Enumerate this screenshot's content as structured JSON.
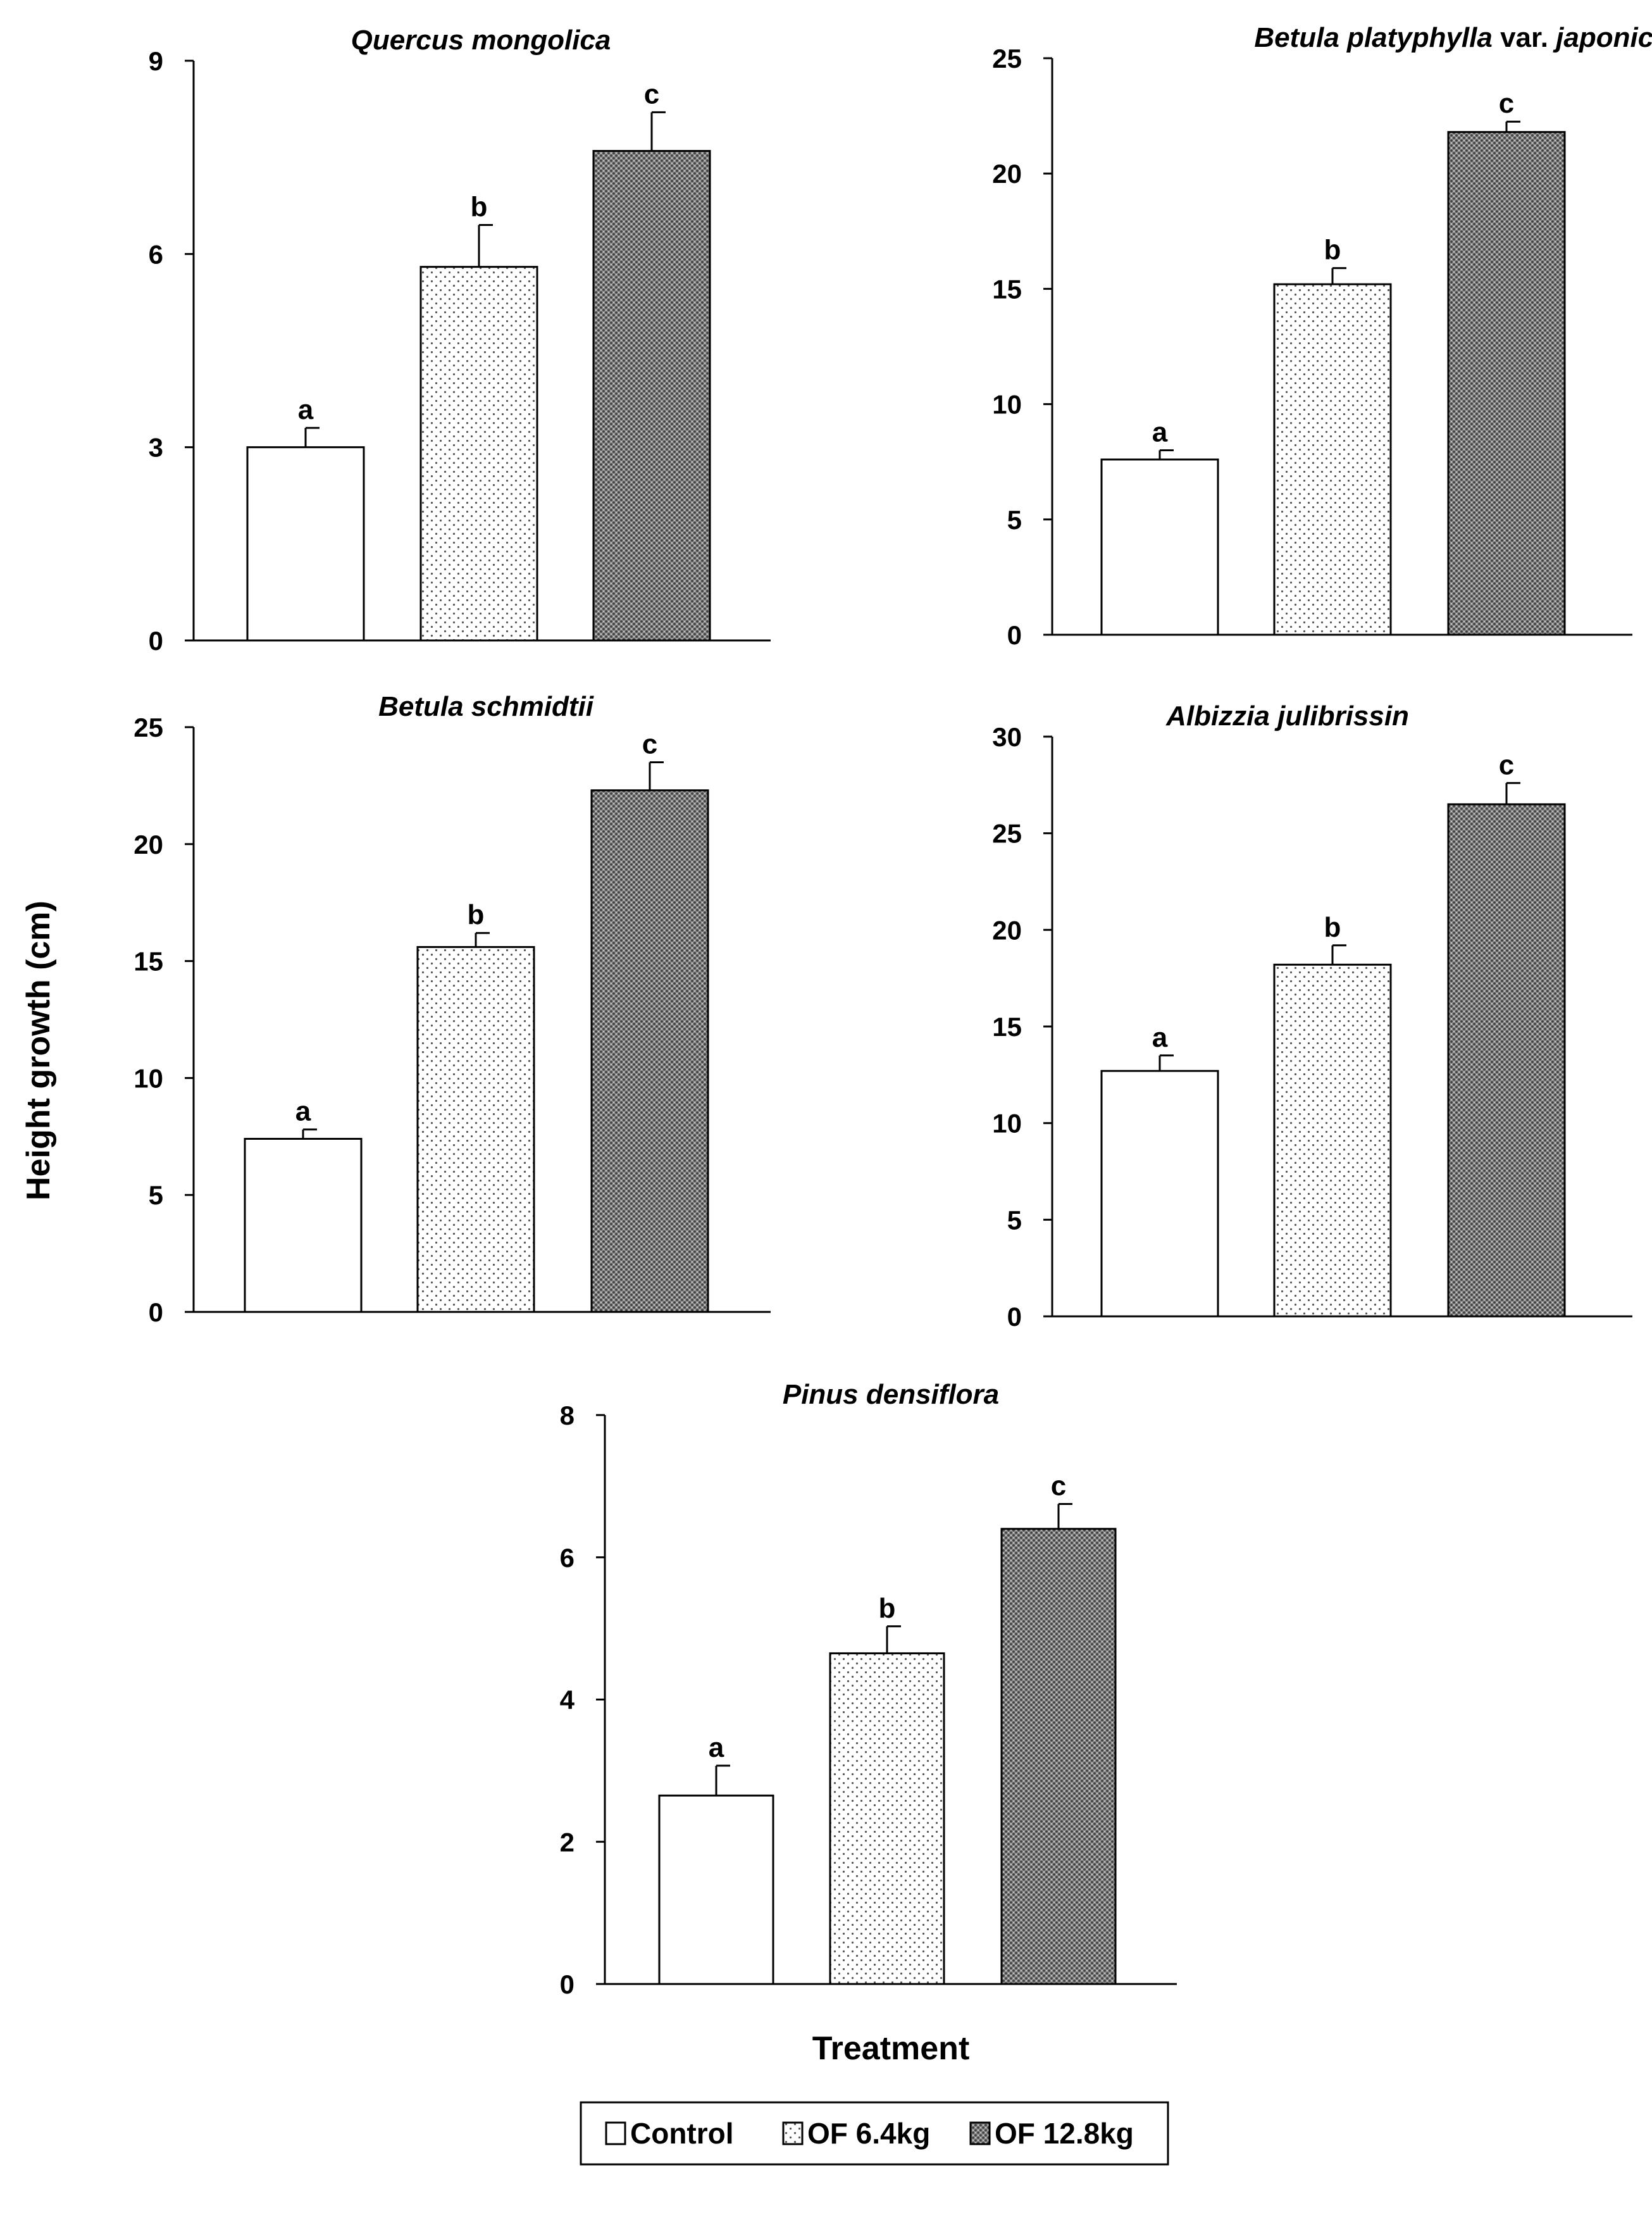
{
  "figure": {
    "ylabel": "Height growth (cm)",
    "xlabel": "Treatment"
  },
  "legend": {
    "items": [
      {
        "label": "Control",
        "pattern": "empty"
      },
      {
        "label": "OF 6.4kg",
        "pattern": "dots"
      },
      {
        "label": "OF 12.8kg",
        "pattern": "dense"
      }
    ]
  },
  "colors": {
    "bar_outline": "#000000",
    "control_fill": "#ffffff",
    "dense_fill": "#7a7a7a",
    "dot_color": "#555555"
  },
  "chart_data": [
    {
      "type": "bar",
      "title": "Quercus mongolica",
      "title_parts": [
        {
          "text": "Quercus mongolica",
          "italic": true
        }
      ],
      "categories": [
        "Control",
        "OF 6.4kg",
        "OF 12.8kg"
      ],
      "values": [
        3.0,
        5.8,
        7.6
      ],
      "errors": [
        0.3,
        0.65,
        0.6
      ],
      "letters": [
        "a",
        "b",
        "c"
      ],
      "ylim": [
        0,
        9
      ],
      "yticks": [
        0,
        3,
        6,
        9
      ],
      "xlabel": "",
      "ylabel": "Height growth (cm)"
    },
    {
      "type": "bar",
      "title": "Betula platyphylla var. japonica",
      "title_parts": [
        {
          "text": "Betula platyphylla",
          "italic": true
        },
        {
          "text": " var. ",
          "italic": false
        },
        {
          "text": "japonica",
          "italic": true
        }
      ],
      "categories": [
        "Control",
        "OF 6.4kg",
        "OF 12.8kg"
      ],
      "values": [
        7.6,
        15.2,
        21.8
      ],
      "errors": [
        0.4,
        0.7,
        0.45
      ],
      "letters": [
        "a",
        "b",
        "c"
      ],
      "ylim": [
        0,
        25
      ],
      "yticks": [
        0,
        5,
        10,
        15,
        20,
        25
      ],
      "xlabel": "",
      "ylabel": "Height growth (cm)"
    },
    {
      "type": "bar",
      "title": "Betula schmidtii",
      "title_parts": [
        {
          "text": "Betula schmidtii",
          "italic": true
        }
      ],
      "categories": [
        "Control",
        "OF 6.4kg",
        "OF 12.8kg"
      ],
      "values": [
        7.4,
        15.6,
        22.3
      ],
      "errors": [
        0.4,
        0.6,
        1.2
      ],
      "letters": [
        "a",
        "b",
        "c"
      ],
      "ylim": [
        0,
        25
      ],
      "yticks": [
        0,
        5,
        10,
        15,
        20,
        25
      ],
      "xlabel": "",
      "ylabel": "Height growth (cm)"
    },
    {
      "type": "bar",
      "title": "Albizzia julibrissin",
      "title_parts": [
        {
          "text": "Albizzia julibrissin",
          "italic": true
        }
      ],
      "categories": [
        "Control",
        "OF 6.4kg",
        "OF 12.8kg"
      ],
      "values": [
        12.7,
        18.2,
        26.5
      ],
      "errors": [
        0.8,
        1.0,
        1.1
      ],
      "letters": [
        "a",
        "b",
        "c"
      ],
      "ylim": [
        0,
        30
      ],
      "yticks": [
        0,
        5,
        10,
        15,
        20,
        25,
        30
      ],
      "xlabel": "",
      "ylabel": "Height growth (cm)"
    },
    {
      "type": "bar",
      "title": "Pinus densiflora",
      "title_parts": [
        {
          "text": "Pinus densiflora",
          "italic": true
        }
      ],
      "categories": [
        "Control",
        "OF 6.4kg",
        "OF 12.8kg"
      ],
      "values": [
        2.65,
        4.65,
        6.4
      ],
      "errors": [
        0.42,
        0.38,
        0.35
      ],
      "letters": [
        "a",
        "b",
        "c"
      ],
      "ylim": [
        0,
        8
      ],
      "yticks": [
        0,
        2,
        4,
        6,
        8
      ],
      "xlabel": "Treatment",
      "ylabel": "Height growth (cm)"
    }
  ]
}
